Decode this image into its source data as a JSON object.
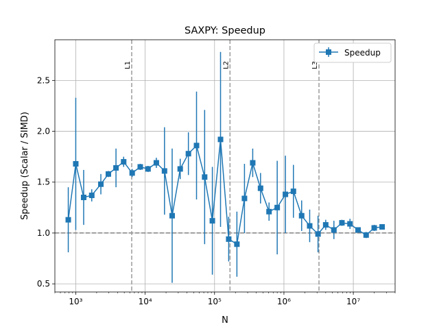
{
  "chart_data": {
    "type": "line",
    "title": "SAXPY: Speedup",
    "xlabel": "N",
    "ylabel": "Speedup (Scalar / SIMD)",
    "xscale": "log",
    "xlim": [
      500,
      40000000
    ],
    "ylim": [
      0.42,
      2.9
    ],
    "grid": true,
    "legend_position": "top-right",
    "x_tick_labels": [
      "10³",
      "10⁴",
      "10⁵",
      "10⁶",
      "10⁷"
    ],
    "x_tick_values": [
      1000,
      10000,
      100000,
      1000000,
      10000000
    ],
    "y_tick_labels": [
      "0.5",
      "1.0",
      "1.5",
      "2.0",
      "2.5"
    ],
    "y_tick_values": [
      0.5,
      1.0,
      1.5,
      2.0,
      2.5
    ],
    "reference_line": {
      "y": 1.0
    },
    "cache_markers": [
      {
        "label": "L1",
        "x": 6400
      },
      {
        "label": "L2",
        "x": 167000
      },
      {
        "label": "L3",
        "x": 3200000
      }
    ],
    "series": [
      {
        "name": "Speedup",
        "color": "#1f77b4",
        "marker": "square",
        "x": [
          780,
          1000,
          1300,
          1700,
          2300,
          2950,
          3800,
          4900,
          6500,
          8500,
          11000,
          14500,
          19000,
          24500,
          32000,
          42000,
          55000,
          72000,
          93000,
          122000,
          160000,
          210000,
          270000,
          355000,
          460000,
          610000,
          800000,
          1050000,
          1370000,
          1800000,
          2350000,
          3100000,
          4000000,
          5250000,
          6850000,
          8950000,
          11700000,
          15300000,
          20000000,
          26000000
        ],
        "y": [
          1.13,
          1.68,
          1.35,
          1.37,
          1.48,
          1.58,
          1.64,
          1.7,
          1.59,
          1.65,
          1.63,
          1.69,
          1.61,
          1.17,
          1.63,
          1.78,
          1.86,
          1.55,
          1.12,
          1.92,
          0.94,
          0.89,
          1.34,
          1.69,
          1.44,
          1.21,
          1.25,
          1.38,
          1.41,
          1.17,
          1.07,
          0.99,
          1.08,
          1.03,
          1.1,
          1.09,
          1.03,
          0.98,
          1.05,
          1.06
        ],
        "yerr": [
          0.32,
          0.65,
          0.27,
          0.06,
          0.1,
          0.03,
          0.19,
          0.05,
          0.04,
          0.03,
          0.03,
          0.05,
          0.43,
          0.66,
          0.1,
          0.21,
          0.53,
          0.66,
          0.53,
          0.86,
          0.22,
          0.32,
          0.34,
          0.14,
          0.15,
          0.09,
          0.46,
          0.38,
          0.26,
          0.15,
          0.16,
          0.18,
          0.05,
          0.09,
          0.03,
          0.05,
          0.02,
          0.03,
          0.03,
          0.02
        ]
      }
    ]
  }
}
